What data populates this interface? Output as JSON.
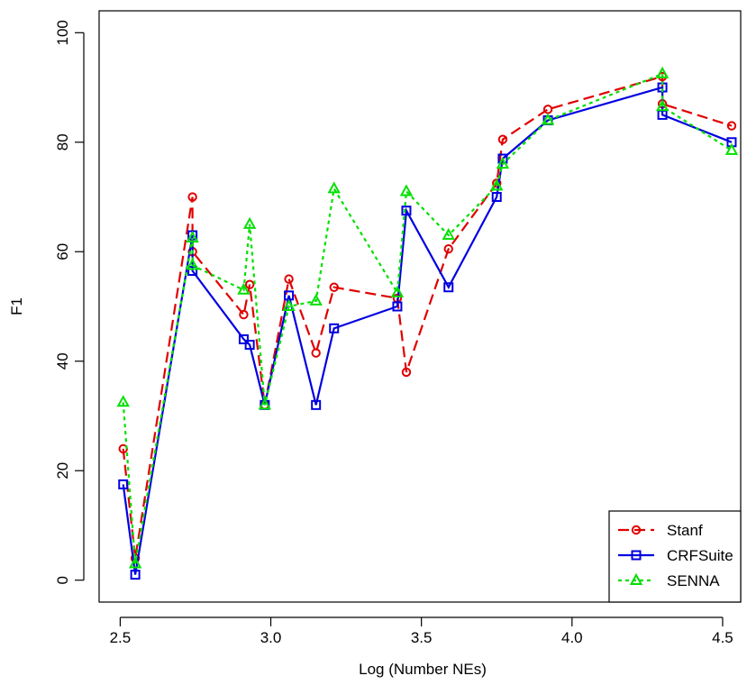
{
  "chart_data": {
    "type": "line",
    "title": "",
    "xlabel": "Log (Number NEs)",
    "ylabel": "F1",
    "xlim": [
      2.43,
      4.56
    ],
    "ylim": [
      -4,
      104
    ],
    "xticks": [
      2.5,
      3.0,
      3.5,
      4.0,
      4.5
    ],
    "xtick_labels": [
      "2.5",
      "3.0",
      "3.5",
      "4.0",
      "4.5"
    ],
    "yticks": [
      0,
      20,
      40,
      60,
      80,
      100
    ],
    "ytick_labels": [
      "0",
      "20",
      "40",
      "60",
      "80",
      "100"
    ],
    "grid": false,
    "legend_position": "bottom-right",
    "series": [
      {
        "name": "Stanf",
        "color": "#e00000",
        "dash": "dashed",
        "marker": "circle",
        "x": [
          2.51,
          2.55,
          2.74,
          2.74,
          2.91,
          2.93,
          2.98,
          3.06,
          3.15,
          3.21,
          3.42,
          3.45,
          3.59,
          3.75,
          3.77,
          3.92,
          4.3,
          4.3,
          4.53
        ],
        "y": [
          24,
          4,
          70,
          60,
          48.5,
          54,
          32,
          55,
          41.5,
          53.5,
          51.5,
          38,
          60.5,
          72.5,
          80.5,
          86,
          92,
          87,
          83
        ]
      },
      {
        "name": "CRFSuite",
        "color": "#0000e0",
        "dash": "solid",
        "marker": "square",
        "x": [
          2.51,
          2.55,
          2.74,
          2.74,
          2.91,
          2.93,
          2.98,
          3.06,
          3.15,
          3.21,
          3.42,
          3.45,
          3.59,
          3.75,
          3.77,
          3.92,
          4.3,
          4.3,
          4.53
        ],
        "y": [
          17.5,
          1,
          63,
          56.5,
          44,
          43,
          32,
          52,
          32,
          46,
          50,
          67.5,
          53.5,
          70,
          77,
          84,
          90,
          85,
          80
        ]
      },
      {
        "name": "SENNA",
        "color": "#00e000",
        "dash": "dotted",
        "marker": "triangle",
        "x": [
          2.51,
          2.55,
          2.74,
          2.74,
          2.91,
          2.93,
          2.98,
          3.06,
          3.15,
          3.21,
          3.42,
          3.45,
          3.59,
          3.75,
          3.77,
          3.92,
          4.3,
          4.3,
          4.53
        ],
        "y": [
          32.5,
          3,
          62.5,
          57.5,
          53,
          65,
          32,
          50,
          51,
          71.5,
          52.5,
          71,
          63,
          72,
          76,
          84,
          92.5,
          86.5,
          78.5
        ]
      }
    ]
  }
}
